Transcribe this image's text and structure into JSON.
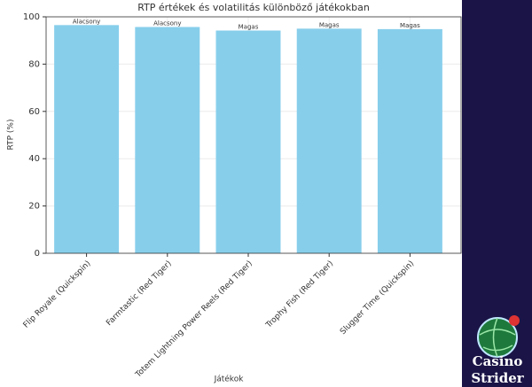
{
  "chart_data": {
    "type": "bar",
    "title": "RTP értékek és volatilitás különböző játékokban",
    "x_label": "Játékok",
    "y_label": "RTP (%)",
    "categories": [
      "Flip Royale (Quickspin)",
      "Farmtastic (Red Tiger)",
      "Totem Lightning Power Reels (Red Tiger)",
      "Trophy Fish (Red Tiger)",
      "Slugger Time (Quickspin)"
    ],
    "values": [
      96.5,
      95.7,
      94.2,
      95.0,
      94.8
    ],
    "annotations": [
      "Alacsony",
      "Alacsony",
      "Magas",
      "Magas",
      "Magas"
    ],
    "color": "#87ceeb",
    "ylim": [
      0,
      100
    ],
    "yticks": [
      0,
      20,
      40,
      60,
      80,
      100
    ],
    "grid": true
  },
  "logo": {
    "line1": "Casino",
    "line2": "Strider"
  }
}
